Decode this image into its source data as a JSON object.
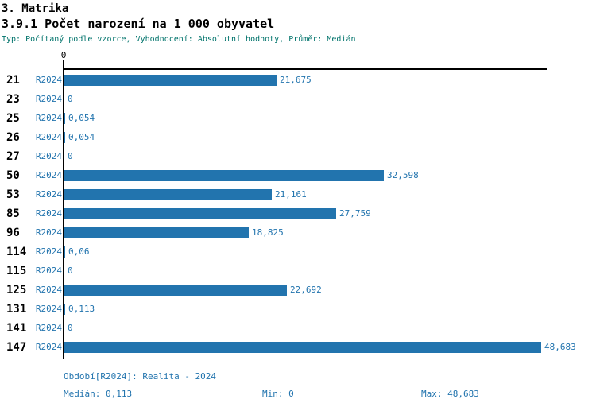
{
  "header": {
    "title": "3. Matrika",
    "subtitle": "3.9.1 Počet narození na 1 000 obyvatel",
    "type_line": "Typ: Počítaný podle vzorce, Vyhodnocení: Absolutní hodnoty, Průměr: Medián"
  },
  "colors": {
    "bar": "#2274ae",
    "label_blue": "#2274ae",
    "type_line_teal": "#00736b",
    "axis_black": "#000000"
  },
  "chart_data": {
    "type": "bar",
    "orientation": "horizontal",
    "title": "3.9.1 Počet narození na 1 000 obyvatel",
    "series_name": "R2024",
    "categories": [
      "21",
      "23",
      "25",
      "26",
      "27",
      "50",
      "53",
      "85",
      "96",
      "114",
      "115",
      "125",
      "131",
      "141",
      "147"
    ],
    "values": [
      21.675,
      0,
      0.054,
      0.054,
      0,
      32.598,
      21.161,
      27.759,
      18.825,
      0.06,
      0,
      22.692,
      0.113,
      0,
      48.683
    ],
    "value_labels": [
      "21,675",
      "0",
      "0,054",
      "0,054",
      "0",
      "32,598",
      "21,161",
      "27,759",
      "18,825",
      "0,06",
      "0",
      "22,692",
      "0,113",
      "0",
      "48,683"
    ],
    "axis_tick_label": "0",
    "xlim": [
      0,
      48.683
    ],
    "grid": false,
    "legend_position": "none"
  },
  "footer": {
    "period_line": "Období[R2024]: Realita - 2024",
    "median": "Medián: 0,113",
    "min": "Min: 0",
    "max": "Max: 48,683"
  }
}
